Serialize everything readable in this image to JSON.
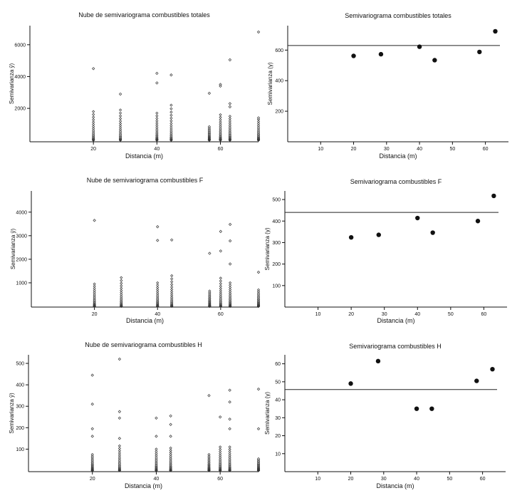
{
  "chart_data": [
    {
      "id": "cloud_total",
      "type": "scatter",
      "title": "Nube de semivariograma combustibles totales",
      "xlabel": "Distancia (m)",
      "ylabel": "Semivarianza ŷ)",
      "xlim": [
        0,
        72
      ],
      "ylim": [
        -100,
        7200
      ],
      "xticks": [
        20,
        40,
        60
      ],
      "yticks": [
        2000,
        4000,
        6000
      ],
      "lags": [
        20,
        28.5,
        40,
        44.5,
        56.5,
        60,
        63,
        72
      ],
      "high_points": [
        [
          20,
          4500
        ],
        [
          28.5,
          2900
        ],
        [
          40,
          4200
        ],
        [
          40,
          3600
        ],
        [
          44.5,
          4100
        ],
        [
          56.5,
          2950
        ],
        [
          60,
          3500
        ],
        [
          60,
          3400
        ],
        [
          63,
          5050
        ],
        [
          63,
          2300
        ],
        [
          63,
          2100
        ],
        [
          72,
          6800
        ],
        [
          72,
          1400
        ]
      ],
      "dense_top": [
        1800,
        1900,
        1700,
        2200,
        850,
        1600,
        1500,
        1300
      ]
    },
    {
      "id": "model_total",
      "type": "scatter",
      "title": "Semivariograma combustibles totales",
      "xlabel": "Distancia (m)",
      "ylabel": "Semivarianza (γ)",
      "xlim": [
        0,
        67
      ],
      "ylim": [
        0,
        760
      ],
      "xticks": [
        10,
        20,
        30,
        40,
        50,
        60
      ],
      "yticks": [
        200,
        400,
        600
      ],
      "points": [
        [
          20,
          562
        ],
        [
          28.3,
          573
        ],
        [
          40,
          622
        ],
        [
          44.6,
          534
        ],
        [
          58.2,
          588
        ],
        [
          63,
          723
        ]
      ],
      "sill": 630
    },
    {
      "id": "cloud_f",
      "type": "scatter",
      "title": "Nube de semivariograma combustibles F",
      "xlabel": "Distancia (m)",
      "ylabel": "Semivarianza ŷ)",
      "xlim": [
        0,
        72
      ],
      "ylim": [
        -30,
        4900
      ],
      "xticks": [
        20,
        40,
        60
      ],
      "yticks": [
        1000,
        2000,
        3000,
        4000
      ],
      "lags": [
        20,
        28.5,
        40,
        44.5,
        56.5,
        60,
        63,
        72
      ],
      "high_points": [
        [
          20,
          3650
        ],
        [
          40,
          3380
        ],
        [
          40,
          2800
        ],
        [
          44.5,
          2820
        ],
        [
          56.5,
          2250
        ],
        [
          60,
          3180
        ],
        [
          60,
          2350
        ],
        [
          63,
          3480
        ],
        [
          63,
          2780
        ],
        [
          63,
          1800
        ],
        [
          72,
          1450
        ]
      ],
      "dense_top": [
        950,
        1220,
        1000,
        1300,
        650,
        1200,
        1000,
        700
      ]
    },
    {
      "id": "model_f",
      "type": "scatter",
      "title": "Semivariograma combustibles F",
      "xlabel": "Distancia (m)",
      "ylabel": "Semivarianza (γ)",
      "xlim": [
        0,
        67
      ],
      "ylim": [
        0,
        540
      ],
      "xticks": [
        10,
        20,
        30,
        40,
        50,
        60
      ],
      "yticks": [
        100,
        200,
        300,
        400,
        500
      ],
      "points": [
        [
          20,
          324
        ],
        [
          28.3,
          336
        ],
        [
          40,
          414
        ],
        [
          44.6,
          346
        ],
        [
          58.2,
          400
        ],
        [
          63,
          517
        ]
      ],
      "sill": 440
    },
    {
      "id": "cloud_h",
      "type": "scatter",
      "title": "Nube de semivariograma combustibles H",
      "xlabel": "Distancia (m)",
      "ylabel": "Semivarianza ŷ)",
      "xlim": [
        0,
        72
      ],
      "ylim": [
        -5,
        540
      ],
      "xticks": [
        20,
        40,
        60
      ],
      "yticks": [
        100,
        200,
        300,
        400,
        500
      ],
      "lags": [
        20,
        28.5,
        40,
        44.5,
        56.5,
        60,
        63,
        72
      ],
      "high_points": [
        [
          20,
          445
        ],
        [
          20,
          310
        ],
        [
          20,
          195
        ],
        [
          20,
          160
        ],
        [
          28.5,
          520
        ],
        [
          28.5,
          275
        ],
        [
          28.5,
          245
        ],
        [
          28.5,
          150
        ],
        [
          40,
          245
        ],
        [
          40,
          160
        ],
        [
          44.5,
          255
        ],
        [
          44.5,
          215
        ],
        [
          44.5,
          160
        ],
        [
          56.5,
          350
        ],
        [
          60,
          250
        ],
        [
          63,
          375
        ],
        [
          63,
          320
        ],
        [
          63,
          240
        ],
        [
          63,
          195
        ],
        [
          72,
          380
        ],
        [
          72,
          195
        ]
      ],
      "dense_top": [
        75,
        115,
        100,
        105,
        75,
        110,
        110,
        55
      ]
    },
    {
      "id": "model_h",
      "type": "scatter",
      "title": "Semivariograma combustibles H",
      "xlabel": "Distancia (m)",
      "ylabel": "Semivarianza (γ)",
      "xlim": [
        0,
        67
      ],
      "ylim": [
        0,
        65
      ],
      "xticks": [
        10,
        20,
        30,
        40,
        50,
        60
      ],
      "yticks": [
        10,
        20,
        30,
        40,
        50,
        60
      ],
      "points": [
        [
          20,
          49
        ],
        [
          28.3,
          61.5
        ],
        [
          40,
          35
        ],
        [
          44.6,
          35
        ],
        [
          58.2,
          50.5
        ],
        [
          63,
          57
        ]
      ],
      "sill": 45.7
    }
  ]
}
